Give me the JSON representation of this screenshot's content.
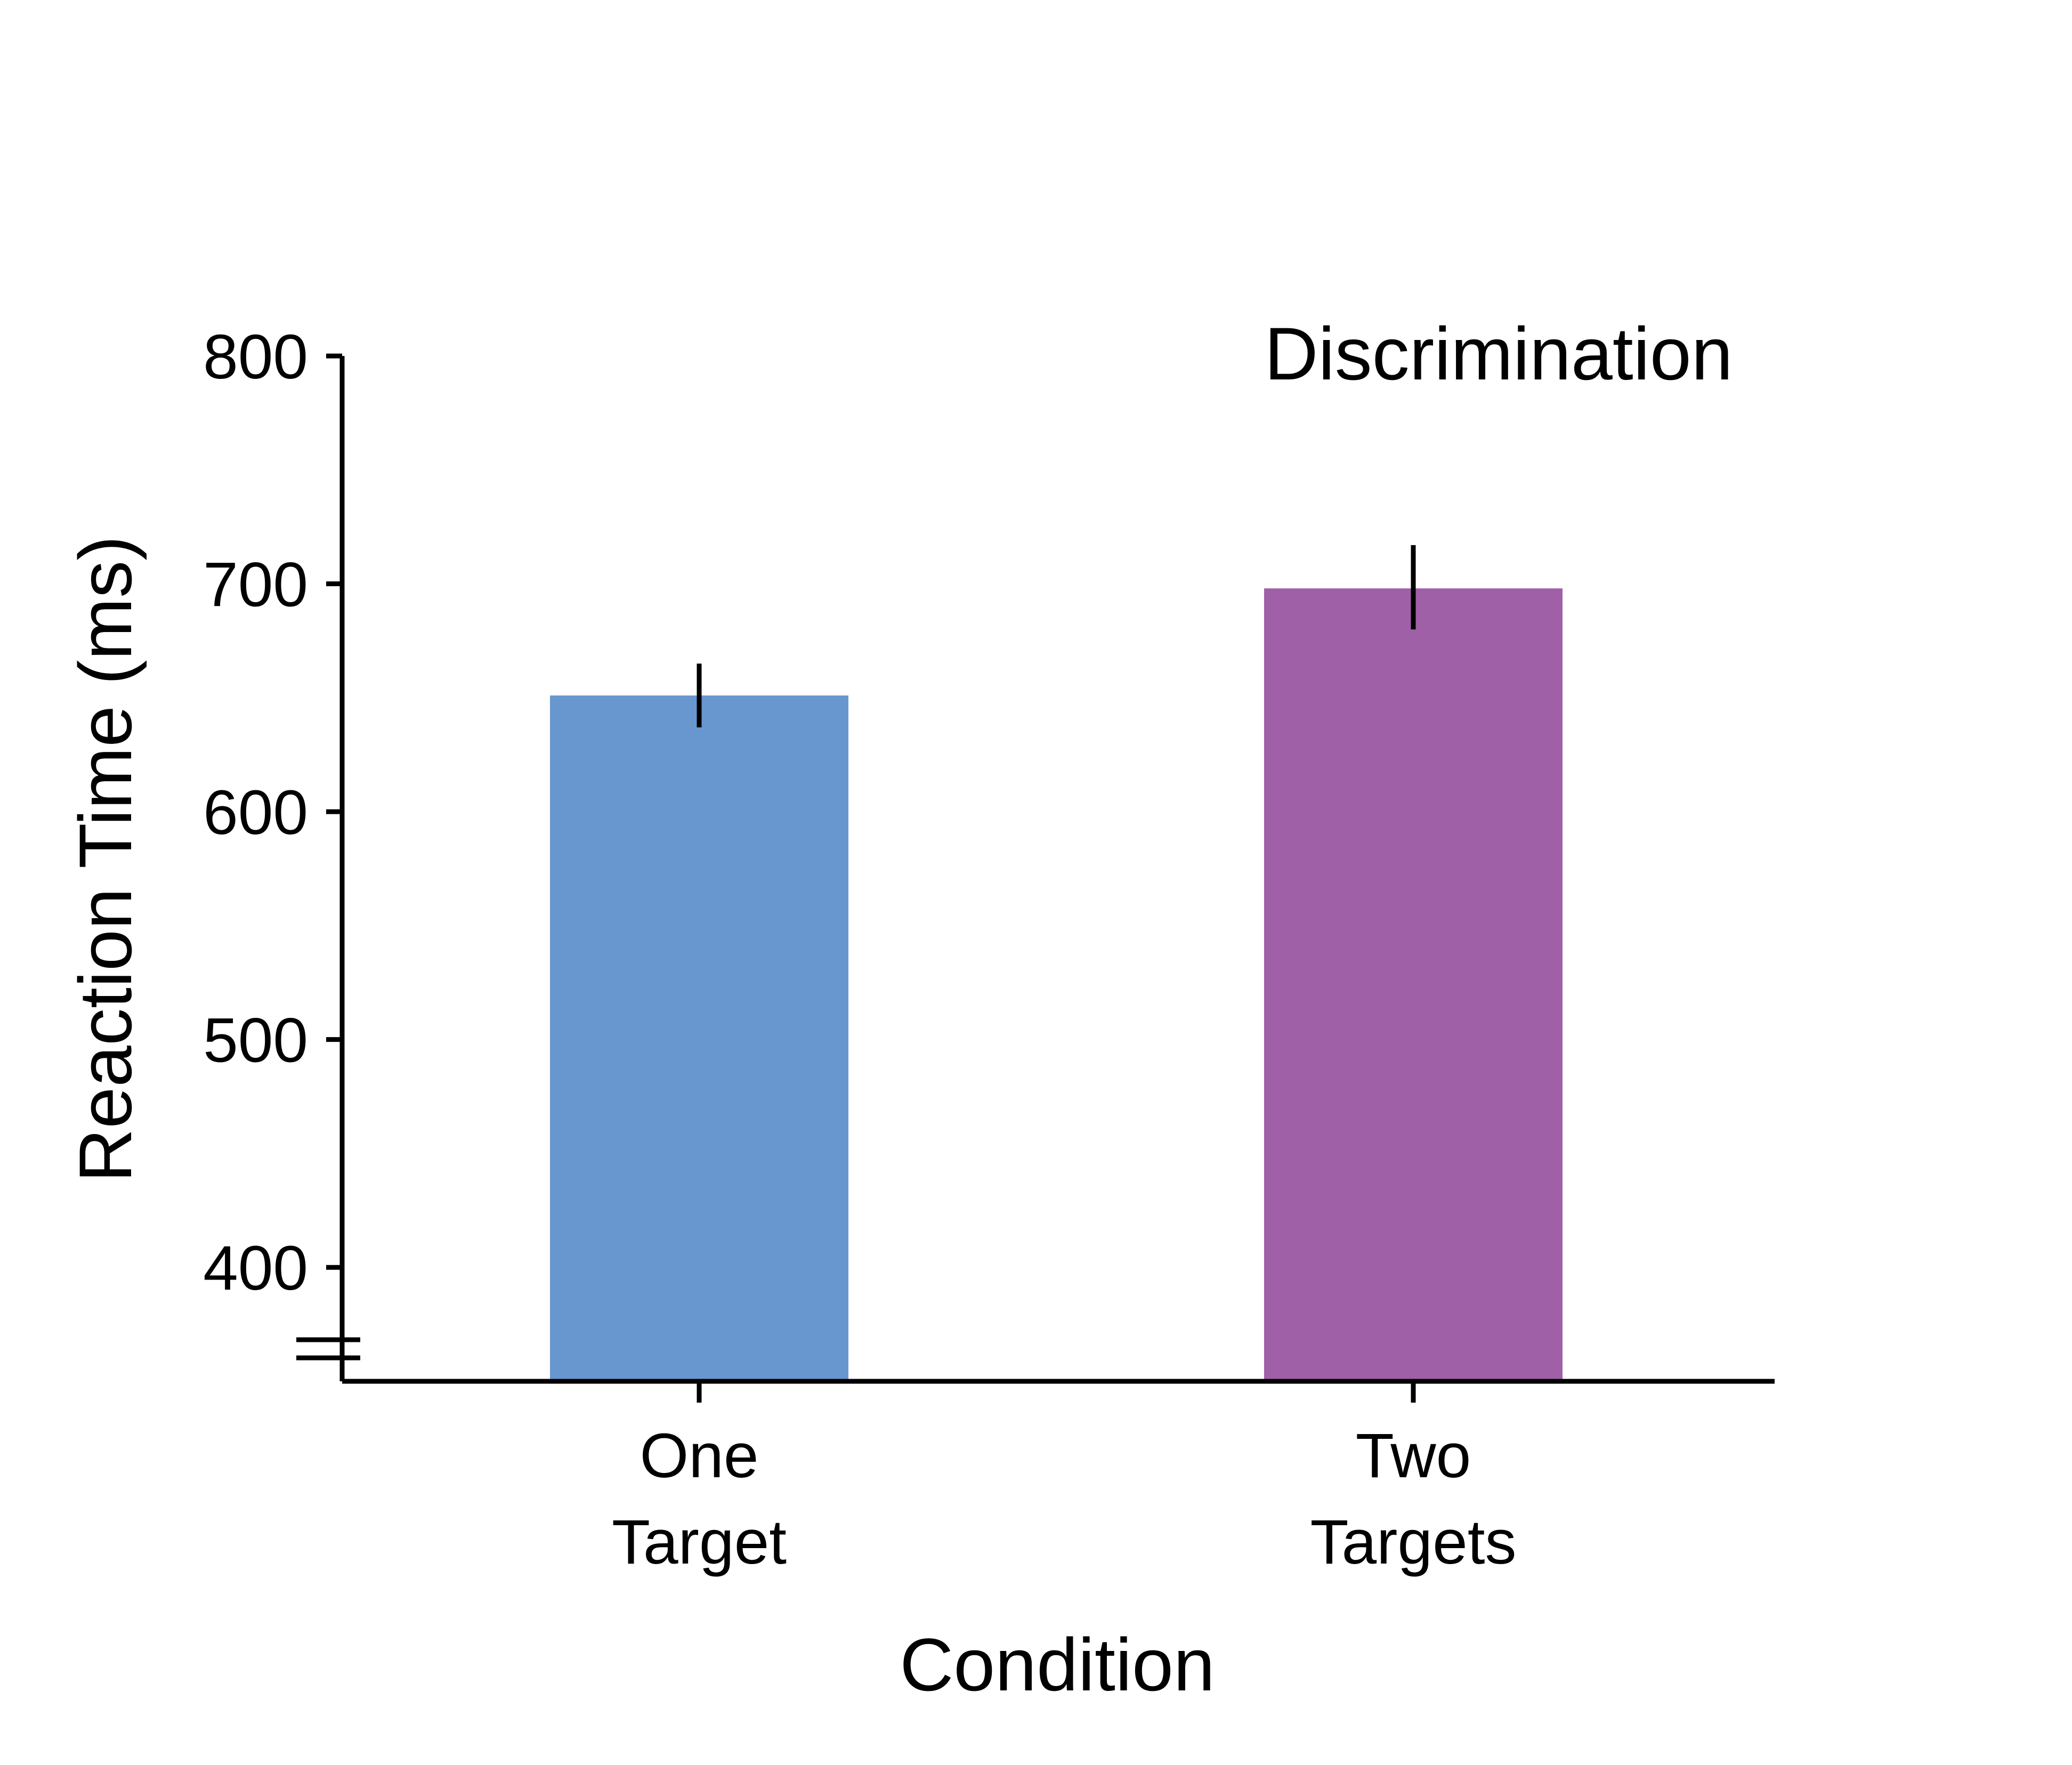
{
  "chart_data": {
    "type": "bar",
    "title": "Discrimination",
    "xlabel": "Condition",
    "ylabel": "Reaction Time (ms)",
    "categories": [
      [
        "One",
        "Target"
      ],
      [
        "Two",
        "Targets"
      ]
    ],
    "values": [
      651,
      698
    ],
    "errors": [
      [
        637,
        665
      ],
      [
        680,
        717
      ]
    ],
    "colors": [
      "#6897cf",
      "#a060a7"
    ],
    "ylim": [
      350,
      800
    ],
    "yticks": [
      400,
      500,
      600,
      700,
      800
    ],
    "axis_break": true,
    "grid": false,
    "legend": "none"
  }
}
